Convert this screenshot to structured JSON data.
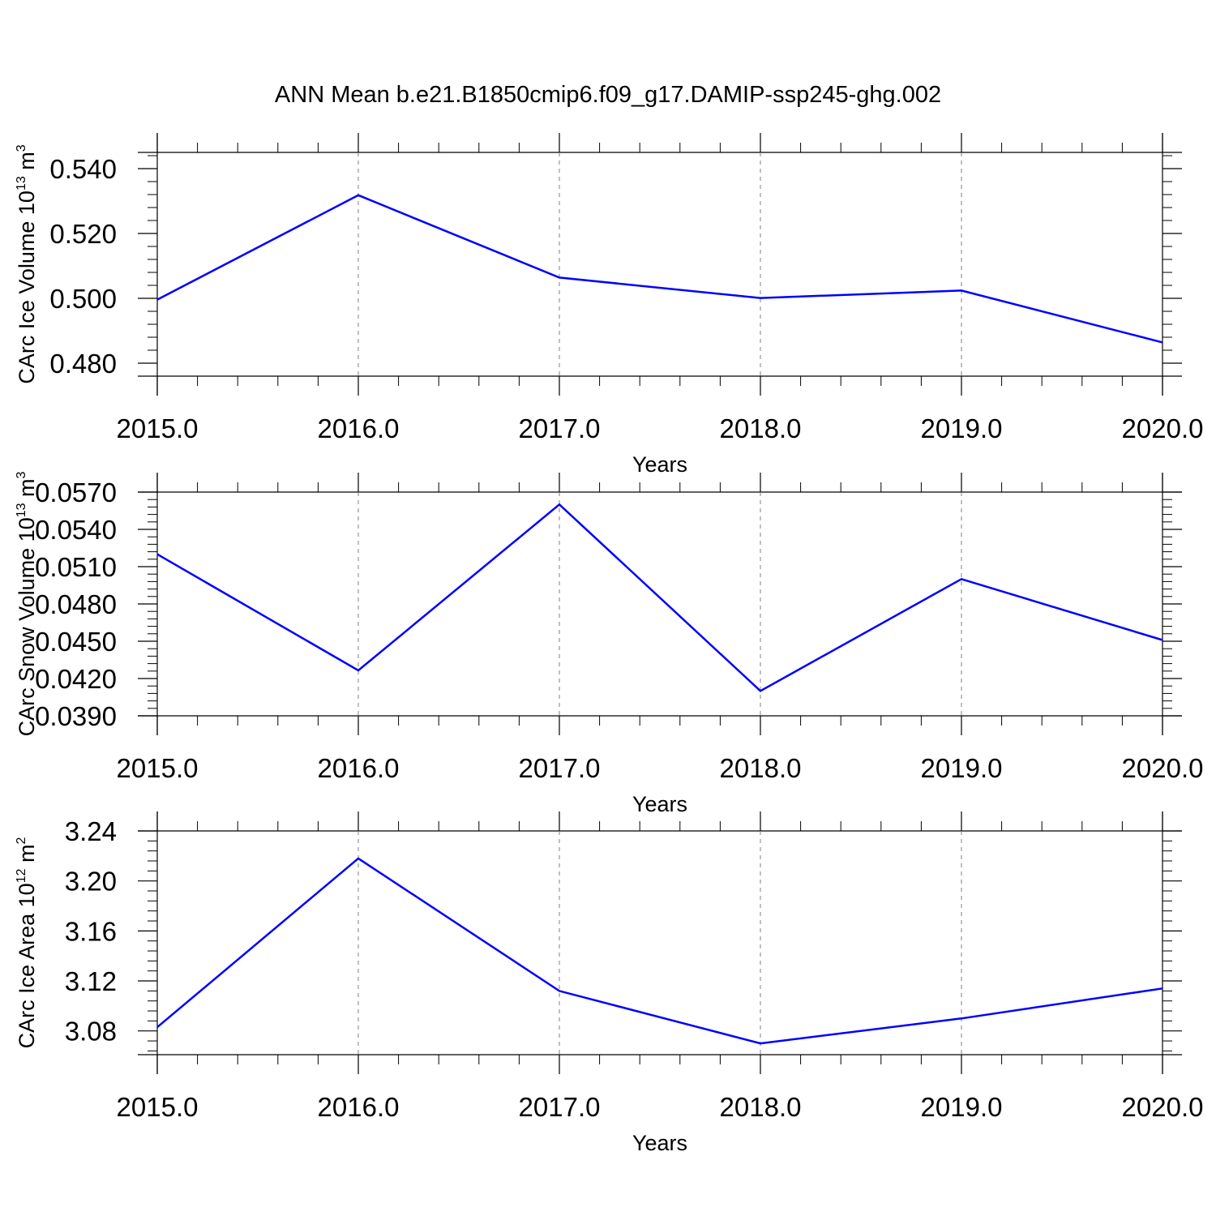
{
  "title": "ANN Mean b.e21.B1850cmip6.f09_g17.DAMIP-ssp245-ghg.002",
  "colors": {
    "series": "#0000ff",
    "axis": "#000000",
    "grid": "#808080"
  },
  "chart_data": [
    {
      "type": "line",
      "xlabel": "Years",
      "ylabel_text": "CArc Ice Volume 10",
      "ylabel_exp": "13",
      "ylabel_unit": " m",
      "ylabel_unit_exp": "3",
      "xlim": [
        2015.0,
        2020.0
      ],
      "ylim": [
        0.476,
        0.545
      ],
      "xticks": [
        2015.0,
        2016.0,
        2017.0,
        2018.0,
        2019.0,
        2020.0
      ],
      "xtick_labels": [
        "2015.0",
        "2016.0",
        "2017.0",
        "2018.0",
        "2019.0",
        "2020.0"
      ],
      "yticks": [
        0.48,
        0.5,
        0.52,
        0.54
      ],
      "ytick_labels": [
        "0.480",
        "0.500",
        "0.520",
        "0.540"
      ],
      "y_minor_step": 0.004,
      "x_minor_step": 0.2,
      "x": [
        2015,
        2016,
        2017,
        2018,
        2019,
        2020
      ],
      "y": [
        0.4996,
        0.5318,
        0.5064,
        0.5001,
        0.5024,
        0.4864
      ]
    },
    {
      "type": "line",
      "xlabel": "Years",
      "ylabel_text": "CArc Snow Volume 10",
      "ylabel_exp": "13",
      "ylabel_unit": " m",
      "ylabel_unit_exp": "3",
      "xlim": [
        2015.0,
        2020.0
      ],
      "ylim": [
        0.039,
        0.057
      ],
      "xticks": [
        2015.0,
        2016.0,
        2017.0,
        2018.0,
        2019.0,
        2020.0
      ],
      "xtick_labels": [
        "2015.0",
        "2016.0",
        "2017.0",
        "2018.0",
        "2019.0",
        "2020.0"
      ],
      "yticks": [
        0.039,
        0.042,
        0.045,
        0.048,
        0.051,
        0.054,
        0.057
      ],
      "ytick_labels": [
        "0.0390",
        "0.0420",
        "0.0450",
        "0.0480",
        "0.0510",
        "0.0540",
        "0.0570"
      ],
      "y_minor_step": 0.0006,
      "x_minor_step": 0.2,
      "x": [
        2015,
        2016,
        2017,
        2018,
        2019,
        2020
      ],
      "y": [
        0.052,
        0.04265,
        0.056,
        0.041,
        0.05,
        0.0451
      ]
    },
    {
      "type": "line",
      "xlabel": "Years",
      "ylabel_text": "CArc Ice Area 10",
      "ylabel_exp": "12",
      "ylabel_unit": " m",
      "ylabel_unit_exp": "2",
      "xlim": [
        2015.0,
        2020.0
      ],
      "ylim": [
        3.061,
        3.24
      ],
      "xticks": [
        2015.0,
        2016.0,
        2017.0,
        2018.0,
        2019.0,
        2020.0
      ],
      "xtick_labels": [
        "2015.0",
        "2016.0",
        "2017.0",
        "2018.0",
        "2019.0",
        "2020.0"
      ],
      "yticks": [
        3.08,
        3.12,
        3.16,
        3.2,
        3.24
      ],
      "ytick_labels": [
        "3.08",
        "3.12",
        "3.16",
        "3.20",
        "3.24"
      ],
      "y_minor_step": 0.008,
      "x_minor_step": 0.2,
      "x": [
        2015,
        2016,
        2017,
        2018,
        2019,
        2020
      ],
      "y": [
        3.083,
        3.218,
        3.112,
        3.07,
        3.09,
        3.114
      ]
    }
  ]
}
